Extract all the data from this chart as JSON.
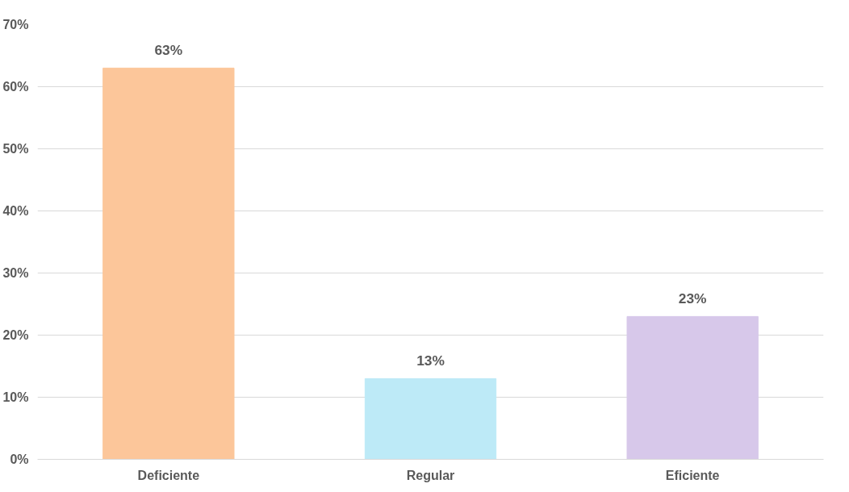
{
  "chart_data": {
    "type": "bar",
    "categories": [
      "Deficiente",
      "Regular",
      "Eficiente"
    ],
    "values": [
      63,
      13,
      23
    ],
    "colors": [
      "#fcc69a",
      "#bdeaf7",
      "#d7c8ea"
    ],
    "value_labels": [
      "63%",
      "13%",
      "23%"
    ],
    "ylim": [
      0,
      70
    ],
    "yticks": [
      {
        "value": 0,
        "label": "0%"
      },
      {
        "value": 10,
        "label": "10%"
      },
      {
        "value": 20,
        "label": "20%"
      },
      {
        "value": 30,
        "label": "30%"
      },
      {
        "value": 40,
        "label": "40%"
      },
      {
        "value": 50,
        "label": "50%"
      },
      {
        "value": 60,
        "label": "60%"
      },
      {
        "value": 70,
        "label": "70%"
      }
    ],
    "grid": "y"
  }
}
